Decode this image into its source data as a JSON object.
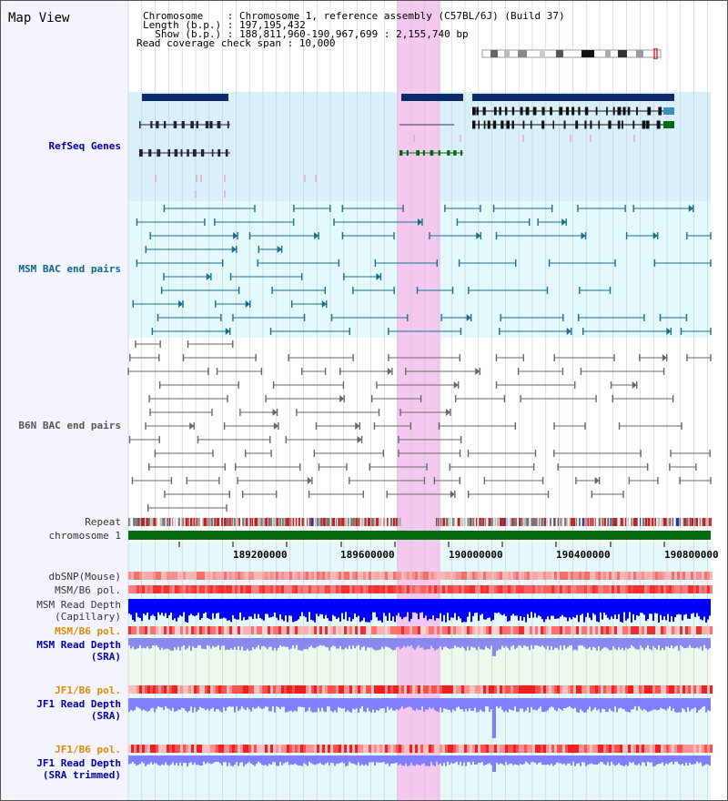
{
  "title": "Map View",
  "info": {
    "chromosome": "Chromosome    : Chromosome 1, reference assembly (C57BL/6J) (Build 37)",
    "length": "Length (b.p.) : 197,195,432",
    "show": "  Show (b.p.) : 188,811,960-190,967,699 : 2,155,740 bp",
    "coverage": "Read coverage check span : 10,000"
  },
  "tracks": {
    "refseq": "RefSeq Genes",
    "msm_bac": "MSM BAC end pairs",
    "b6n_bac": "B6N BAC end pairs",
    "repeat": "Repeat",
    "chromosome": "chromosome 1",
    "dbsnp": "dbSNP(Mouse)",
    "msm_b6_pol_1": "MSM/B6 pol.",
    "msm_read_depth_cap_1": "MSM Read Depth",
    "msm_read_depth_cap_2": "(Capillary)",
    "msm_b6_pol_2": "MSM/B6 pol.",
    "msm_read_depth_sra_1": "MSM Read Depth",
    "msm_read_depth_sra_2": "(SRA)",
    "jf1_b6_pol_1": "JF1/B6 pol.",
    "jf1_read_depth_sra_1": "JF1 Read Depth",
    "jf1_read_depth_sra_2": "(SRA)",
    "jf1_b6_pol_2": "JF1/B6 pol.",
    "jf1_read_depth_trim_1": "JF1 Read Depth",
    "jf1_read_depth_trim_2": "(SRA trimmed)"
  },
  "ruler": [
    "189200000",
    "189600000",
    "190000000",
    "190400000",
    "190800000"
  ],
  "colors": {
    "navy": "#0b2a6b",
    "teal": "#1a6e8a",
    "grey": "#666666",
    "green": "#076b12",
    "highlight": "#f5c9ef",
    "blue_bar": "#0000ff",
    "light_blue_bar": "#8080ff",
    "orange": "#e08a00",
    "label_blue": "#0000aa",
    "label_teal": "#0a6890"
  }
}
